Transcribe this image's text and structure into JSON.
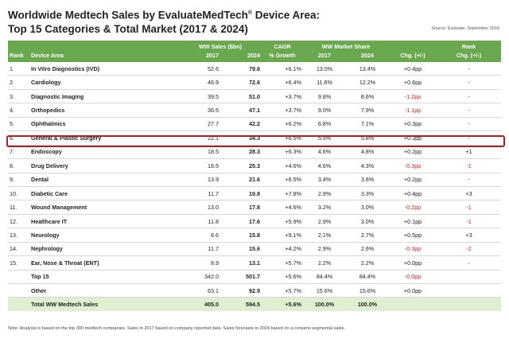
{
  "title_line1": "Worldwide Medtech Sales by EvaluateMedTech",
  "title_reg": "®",
  "title_line1b": " Device Area:",
  "title_line2": "Top 15 Categories & Total Market (2017 & 2024)",
  "source": "Source: Evaluate, September 2018",
  "header": {
    "rank": "Rank",
    "device_area": "Device Area",
    "ww_sales": "WW Sales ($bn)",
    "cagr": "CAGR",
    "cagr_sub": "% Growth",
    "ww_share": "WW Market Share",
    "rank_chg": "Rank",
    "rank_chg_sub": "Chg. (+/-)",
    "y2017": "2017",
    "y2024": "2024",
    "share2017": "2017",
    "share2024": "2024",
    "chg": "Chg. (+/-)"
  },
  "rows": [
    {
      "rank": "1.",
      "area": "In Vitro Diagnostics (IVD)",
      "s17": "52.6",
      "s24": "79.6",
      "cagr": "+6.1%",
      "m17": "13.0%",
      "m24": "13.4%",
      "chg": "+0.4pp",
      "chg_neg": false,
      "rchg": "-",
      "rchg_neg": false
    },
    {
      "rank": "2.",
      "area": "Cardiology",
      "s17": "46.9",
      "s24": "72.6",
      "cagr": "+6.4%",
      "m17": "11.6%",
      "m24": "12.2%",
      "chg": "+0.6pp",
      "chg_neg": false,
      "rchg": "-",
      "rchg_neg": false
    },
    {
      "rank": "3.",
      "area": "Diagnostic Imaging",
      "s17": "39.5",
      "s24": "51.0",
      "cagr": "+3.7%",
      "m17": "9.8%",
      "m24": "8.6%",
      "chg": "-1.2pp",
      "chg_neg": true,
      "rchg": "-",
      "rchg_neg": false
    },
    {
      "rank": "4.",
      "area": "Orthopedics",
      "s17": "36.5",
      "s24": "47.1",
      "cagr": "+3.7%",
      "m17": "9.0%",
      "m24": "7.9%",
      "chg": "-1.1pp",
      "chg_neg": true,
      "rchg": "-",
      "rchg_neg": false
    },
    {
      "rank": "5.",
      "area": "Ophthalmics",
      "s17": "27.7",
      "s24": "42.2",
      "cagr": "+6.2%",
      "m17": "6.8%",
      "m24": "7.1%",
      "chg": "+0.3pp",
      "chg_neg": false,
      "rchg": "-",
      "rchg_neg": false
    },
    {
      "rank": "6.",
      "area": "General & Plastic Surgery",
      "s17": "22.1",
      "s24": "34.3",
      "cagr": "+6.5%",
      "m17": "5.5%",
      "m24": "5.8%",
      "chg": "+0.3pp",
      "chg_neg": false,
      "rchg": "-",
      "rchg_neg": false
    },
    {
      "rank": "7.",
      "area": "Endoscopy",
      "s17": "18.5",
      "s24": "28.3",
      "cagr": "+6.3%",
      "m17": "4.6%",
      "m24": "4.8%",
      "chg": "+0.2pp",
      "chg_neg": false,
      "rchg": "+1",
      "rchg_neg": false
    },
    {
      "rank": "8.",
      "area": "Drug Delivery",
      "s17": "18.5",
      "s24": "25.3",
      "cagr": "+4.6%",
      "m17": "4.6%",
      "m24": "4.3%",
      "chg": "-0.3pp",
      "chg_neg": true,
      "rchg": "-1",
      "rchg_neg": true
    },
    {
      "rank": "9.",
      "area": "Dental",
      "s17": "13.9",
      "s24": "21.6",
      "cagr": "+6.5%",
      "m17": "3.4%",
      "m24": "3.6%",
      "chg": "+0.2pp",
      "chg_neg": false,
      "rchg": "-",
      "rchg_neg": false
    },
    {
      "rank": "10.",
      "area": "Diabetic Care",
      "s17": "11.7",
      "s24": "19.8",
      "cagr": "+7.8%",
      "m17": "2.9%",
      "m24": "3.3%",
      "chg": "+0.4pp",
      "chg_neg": false,
      "rchg": "+3",
      "rchg_neg": false
    },
    {
      "rank": "11.",
      "area": "Wound Management",
      "s17": "13.0",
      "s24": "17.8",
      "cagr": "+4.6%",
      "m17": "3.2%",
      "m24": "3.0%",
      "chg": "-0.2pp",
      "chg_neg": true,
      "rchg": "-1",
      "rchg_neg": true
    },
    {
      "rank": "12.",
      "area": "Healthcare IT",
      "s17": "11.8",
      "s24": "17.6",
      "cagr": "+5.9%",
      "m17": "2.9%",
      "m24": "3.0%",
      "chg": "+0.1pp",
      "chg_neg": false,
      "rchg": "-1",
      "rchg_neg": true
    },
    {
      "rank": "13.",
      "area": "Neurology",
      "s17": "8.6",
      "s24": "15.8",
      "cagr": "+9.1%",
      "m17": "2.1%",
      "m24": "2.7%",
      "chg": "+0.5pp",
      "chg_neg": false,
      "rchg": "+3",
      "rchg_neg": false
    },
    {
      "rank": "14.",
      "area": "Nephrology",
      "s17": "11.7",
      "s24": "15.6",
      "cagr": "+4.2%",
      "m17": "2.9%",
      "m24": "2.6%",
      "chg": "-0.3pp",
      "chg_neg": true,
      "rchg": "-2",
      "rchg_neg": true
    },
    {
      "rank": "15.",
      "area": "Ear, Nose & Throat (ENT)",
      "s17": "8.9",
      "s24": "13.1",
      "cagr": "+5.7%",
      "m17": "2.2%",
      "m24": "2.2%",
      "chg": "+0.0pp",
      "chg_neg": false,
      "rchg": "-",
      "rchg_neg": false
    },
    {
      "rank": "",
      "area": "Top 15",
      "s17": "342.0",
      "s24": "501.7",
      "cagr": "+5.6%",
      "m17": "84.4%",
      "m24": "84.4%",
      "chg": "-0.0pp",
      "chg_neg": true,
      "rchg": "",
      "rchg_neg": false
    },
    {
      "rank": "",
      "area": "Other",
      "s17": "63.1",
      "s24": "92.9",
      "cagr": "+5.7%",
      "m17": "15.6%",
      "m24": "15.6%",
      "chg": "+0.0pp",
      "chg_neg": false,
      "rchg": "",
      "rchg_neg": false
    }
  ],
  "total": {
    "rank": "",
    "area": "Total WW Medtech Sales",
    "s17": "405.0",
    "s24": "594.5",
    "cagr": "+5.6%",
    "m17": "100.0%",
    "m24": "100.0%",
    "chg": "",
    "rchg": ""
  },
  "note": "Note: Analysis is based on the top 300 medtech companies. Sales in 2017 based on company reported data. Sales forecasts to 2024 based on a consens segmental sales.",
  "colors": {
    "header_green": "#6aa84f",
    "total_green": "#dff0d2",
    "negative_red": "#cc2222",
    "highlight_border": "#b01e1e"
  }
}
